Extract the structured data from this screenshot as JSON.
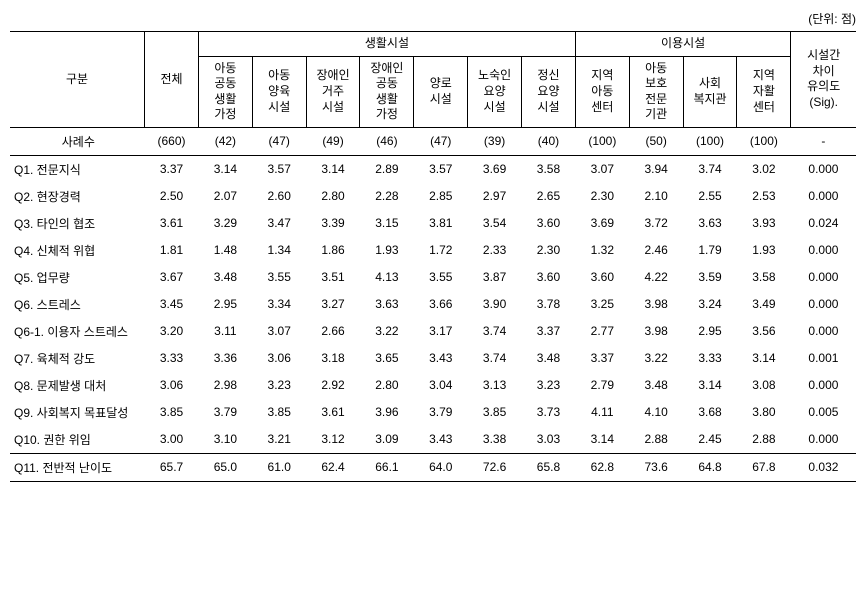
{
  "unit_text": "(단위: 점)",
  "headers": {
    "category": "구분",
    "total": "전체",
    "living_fac": "생활시설",
    "use_fac": "이용시설",
    "sig": "시설간\n차이\n유의도\n(Sig).",
    "living_cols": [
      "아동\n공동\n생활\n가정",
      "아동\n양육\n시설",
      "장애인\n거주\n시설",
      "장애인\n공동\n생활\n가정",
      "양로\n시설",
      "노숙인\n요양\n시설",
      "정신\n요양\n시설"
    ],
    "use_cols": [
      "지역\n아동\n센터",
      "아동\n보호\n전문\n기관",
      "사회\n복지관",
      "지역\n자활\n센터"
    ]
  },
  "cases": {
    "label": "사례수",
    "values": [
      "(660)",
      "(42)",
      "(47)",
      "(49)",
      "(46)",
      "(47)",
      "(39)",
      "(40)",
      "(100)",
      "(50)",
      "(100)",
      "(100)"
    ],
    "sig": "-"
  },
  "rows": [
    {
      "label": "Q1. 전문지식",
      "values": [
        "3.37",
        "3.14",
        "3.57",
        "3.14",
        "2.89",
        "3.57",
        "3.69",
        "3.58",
        "3.07",
        "3.94",
        "3.74",
        "3.02"
      ],
      "sig": "0.000"
    },
    {
      "label": "Q2. 현장경력",
      "values": [
        "2.50",
        "2.07",
        "2.60",
        "2.80",
        "2.28",
        "2.85",
        "2.97",
        "2.65",
        "2.30",
        "2.10",
        "2.55",
        "2.53"
      ],
      "sig": "0.000"
    },
    {
      "label": "Q3. 타인의 협조",
      "values": [
        "3.61",
        "3.29",
        "3.47",
        "3.39",
        "3.15",
        "3.81",
        "3.54",
        "3.60",
        "3.69",
        "3.72",
        "3.63",
        "3.93"
      ],
      "sig": "0.024"
    },
    {
      "label": "Q4. 신체적 위협",
      "values": [
        "1.81",
        "1.48",
        "1.34",
        "1.86",
        "1.93",
        "1.72",
        "2.33",
        "2.30",
        "1.32",
        "2.46",
        "1.79",
        "1.93"
      ],
      "sig": "0.000"
    },
    {
      "label": "Q5. 업무량",
      "values": [
        "3.67",
        "3.48",
        "3.55",
        "3.51",
        "4.13",
        "3.55",
        "3.87",
        "3.60",
        "3.60",
        "4.22",
        "3.59",
        "3.58"
      ],
      "sig": "0.000"
    },
    {
      "label": "Q6. 스트레스",
      "values": [
        "3.45",
        "2.95",
        "3.34",
        "3.27",
        "3.63",
        "3.66",
        "3.90",
        "3.78",
        "3.25",
        "3.98",
        "3.24",
        "3.49"
      ],
      "sig": "0.000"
    },
    {
      "label": "Q6-1. 이용자 스트레스",
      "values": [
        "3.20",
        "3.11",
        "3.07",
        "2.66",
        "3.22",
        "3.17",
        "3.74",
        "3.37",
        "2.77",
        "3.98",
        "2.95",
        "3.56"
      ],
      "sig": "0.000"
    },
    {
      "label": "Q7. 육체적 강도",
      "values": [
        "3.33",
        "3.36",
        "3.06",
        "3.18",
        "3.65",
        "3.43",
        "3.74",
        "3.48",
        "3.37",
        "3.22",
        "3.33",
        "3.14"
      ],
      "sig": "0.001"
    },
    {
      "label": "Q8. 문제발생 대처",
      "values": [
        "3.06",
        "2.98",
        "3.23",
        "2.92",
        "2.80",
        "3.04",
        "3.13",
        "3.23",
        "2.79",
        "3.48",
        "3.14",
        "3.08"
      ],
      "sig": "0.000"
    },
    {
      "label": "Q9. 사회복지 목표달성",
      "values": [
        "3.85",
        "3.79",
        "3.85",
        "3.61",
        "3.96",
        "3.79",
        "3.85",
        "3.73",
        "4.11",
        "4.10",
        "3.68",
        "3.80"
      ],
      "sig": "0.005"
    },
    {
      "label": "Q10. 권한 위임",
      "values": [
        "3.00",
        "3.10",
        "3.21",
        "3.12",
        "3.09",
        "3.43",
        "3.38",
        "3.03",
        "3.14",
        "2.88",
        "2.45",
        "2.88"
      ],
      "sig": "0.000"
    }
  ],
  "total": {
    "label": "Q11. 전반적 난이도",
    "values": [
      "65.7",
      "65.0",
      "61.0",
      "62.4",
      "66.1",
      "64.0",
      "72.6",
      "65.8",
      "62.8",
      "73.6",
      "64.8",
      "67.8"
    ],
    "sig": "0.032"
  }
}
